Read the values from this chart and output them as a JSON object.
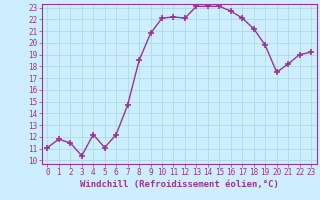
{
  "x": [
    0,
    1,
    2,
    3,
    4,
    5,
    6,
    7,
    8,
    9,
    10,
    11,
    12,
    13,
    14,
    15,
    16,
    17,
    18,
    19,
    20,
    21,
    22,
    23
  ],
  "y": [
    11.1,
    11.8,
    11.5,
    10.4,
    12.2,
    11.1,
    12.2,
    14.7,
    18.5,
    20.8,
    22.1,
    22.2,
    22.1,
    23.1,
    23.1,
    23.1,
    22.7,
    22.1,
    21.2,
    19.8,
    17.5,
    18.2,
    19.0,
    19.2
  ],
  "line_color": "#993399",
  "marker": "+",
  "marker_size": 5,
  "marker_linewidth": 1.2,
  "bg_color": "#cceeff",
  "grid_color": "#aadddd",
  "xlabel": "Windchill (Refroidissement éolien,°C)",
  "ylim": [
    10,
    23
  ],
  "xlim": [
    -0.5,
    23.5
  ],
  "yticks": [
    10,
    11,
    12,
    13,
    14,
    15,
    16,
    17,
    18,
    19,
    20,
    21,
    22,
    23
  ],
  "xticks": [
    0,
    1,
    2,
    3,
    4,
    5,
    6,
    7,
    8,
    9,
    10,
    11,
    12,
    13,
    14,
    15,
    16,
    17,
    18,
    19,
    20,
    21,
    22,
    23
  ],
  "tick_color": "#993399",
  "xlabel_color": "#993399",
  "xlabel_fontsize": 6.5,
  "tick_fontsize": 5.5,
  "line_width": 1.0
}
